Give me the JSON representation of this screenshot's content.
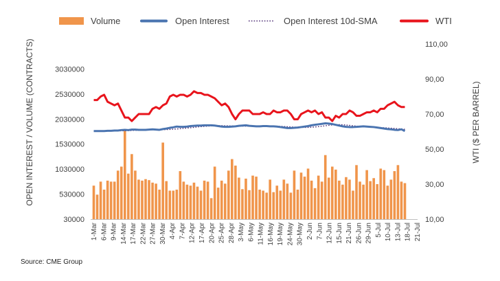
{
  "chart_data": {
    "type": "bar",
    "title": "",
    "source": "Source: CME Group",
    "ylabel_left": "OPEN INTEREST / VOLUME (CONTRACTS)",
    "ylabel_right": "WTI ($ PER BARREL)",
    "ylim_left": [
      30000,
      3530000
    ],
    "ylim_right": [
      10,
      110
    ],
    "left_ticks": [
      "30000",
      "530000",
      "1030000",
      "1530000",
      "2030000",
      "2530000",
      "3030000"
    ],
    "right_ticks": [
      "10,00",
      "30,00",
      "50,00",
      "70,00",
      "90,00",
      "110,00"
    ],
    "x_tick_labels": [
      "1-Mar",
      "6-Mar",
      "9-Mar",
      "14-Mar",
      "17-Mar",
      "22-Mar",
      "27-Mar",
      "30-Mar",
      "4-Apr",
      "7-Apr",
      "12-Apr",
      "17-Apr",
      "20-Apr",
      "25-Apr",
      "28-Apr",
      "3-May",
      "6-May",
      "11-May",
      "16-May",
      "19-May",
      "24-May",
      "30-May",
      "2-Jun",
      "7-Jun",
      "12-Jun",
      "15-Jun",
      "21-Jun",
      "26-Jun",
      "29-Jun",
      "5-Jul",
      "10-Jul",
      "13-Jul",
      "18-Jul",
      "21-Jul"
    ],
    "legend": [
      {
        "name": "Volume",
        "color": "#f0954b",
        "style": "box"
      },
      {
        "name": "Open Interest",
        "color": "#4a74b0",
        "style": "line"
      },
      {
        "name": "Open Interest 10d-SMA",
        "color": "#4b2a73",
        "style": "dotted"
      },
      {
        "name": "WTI",
        "color": "#e8141c",
        "style": "line"
      }
    ],
    "series": [
      {
        "name": "Volume",
        "axis": "left",
        "color": "#f0954b",
        "values": [
          700000,
          520000,
          780000,
          620000,
          800000,
          780000,
          780000,
          1000000,
          1080000,
          1800000,
          940000,
          1330000,
          1000000,
          820000,
          800000,
          830000,
          810000,
          760000,
          740000,
          620000,
          1560000,
          790000,
          600000,
          600000,
          620000,
          990000,
          780000,
          720000,
          700000,
          760000,
          680000,
          600000,
          800000,
          780000,
          450000,
          1080000,
          660000,
          800000,
          740000,
          1000000,
          1230000,
          1100000,
          860000,
          630000,
          840000,
          610000,
          900000,
          880000,
          620000,
          600000,
          560000,
          820000,
          570000,
          700000,
          600000,
          820000,
          740000,
          560000,
          1000000,
          620000,
          960000,
          880000,
          1040000,
          800000,
          650000,
          900000,
          780000,
          1310000,
          860000,
          1080000,
          1020000,
          800000,
          720000,
          870000,
          820000,
          600000,
          1110000,
          780000,
          720000,
          1010000,
          790000,
          850000,
          730000,
          1040000,
          1010000,
          700000,
          820000,
          990000,
          1110000,
          780000,
          750000
        ]
      },
      {
        "name": "Open Interest",
        "axis": "left",
        "color": "#4a74b0",
        "values": [
          1790000,
          1790000,
          1790000,
          1790000,
          1795000,
          1795000,
          1800000,
          1800000,
          1810000,
          1815000,
          1810000,
          1820000,
          1820000,
          1815000,
          1815000,
          1815000,
          1820000,
          1825000,
          1820000,
          1815000,
          1830000,
          1840000,
          1855000,
          1865000,
          1880000,
          1875000,
          1875000,
          1880000,
          1890000,
          1895000,
          1900000,
          1900000,
          1905000,
          1905000,
          1905000,
          1900000,
          1890000,
          1880000,
          1875000,
          1875000,
          1880000,
          1885000,
          1895000,
          1900000,
          1905000,
          1895000,
          1890000,
          1885000,
          1885000,
          1890000,
          1890000,
          1885000,
          1885000,
          1880000,
          1870000,
          1860000,
          1850000,
          1850000,
          1855000,
          1860000,
          1870000,
          1880000,
          1890000,
          1905000,
          1915000,
          1925000,
          1935000,
          1945000,
          1940000,
          1930000,
          1915000,
          1900000,
          1885000,
          1875000,
          1870000,
          1870000,
          1875000,
          1880000,
          1885000,
          1880000,
          1875000,
          1870000,
          1860000,
          1850000,
          1840000,
          1830000,
          1825000,
          1815000,
          1810000,
          1825000,
          1790000
        ]
      },
      {
        "name": "Open Interest 10d-SMA",
        "axis": "left",
        "color": "#4b2a73",
        "values": [
          1790000,
          1790000,
          1790000,
          1790000,
          1791000,
          1792000,
          1793000,
          1794000,
          1795000,
          1797000,
          1799000,
          1802000,
          1805000,
          1807000,
          1809000,
          1811000,
          1813000,
          1815000,
          1816000,
          1816000,
          1818000,
          1820000,
          1823000,
          1827000,
          1832000,
          1838000,
          1844000,
          1850000,
          1857000,
          1864000,
          1872000,
          1878000,
          1884000,
          1888000,
          1892000,
          1895000,
          1897000,
          1897000,
          1896000,
          1894000,
          1892000,
          1891000,
          1890000,
          1889000,
          1888000,
          1888000,
          1888000,
          1889000,
          1889000,
          1890000,
          1890000,
          1889000,
          1888000,
          1886000,
          1884000,
          1881000,
          1877000,
          1873000,
          1869000,
          1866000,
          1864000,
          1863000,
          1864000,
          1867000,
          1872000,
          1879000,
          1887000,
          1896000,
          1905000,
          1912000,
          1917000,
          1918000,
          1916000,
          1911000,
          1904000,
          1896000,
          1889000,
          1883000,
          1878000,
          1874000,
          1870000,
          1867000,
          1864000,
          1861000,
          1857000,
          1852000,
          1847000,
          1842000,
          1837000,
          1832000,
          1826000
        ]
      },
      {
        "name": "WTI",
        "axis": "right",
        "color": "#e8141c",
        "values": [
          78,
          78,
          80,
          81,
          77,
          76,
          75,
          76,
          72,
          68,
          68,
          66,
          68,
          70,
          70,
          70,
          70,
          73,
          74,
          73,
          75,
          76,
          80,
          81,
          80,
          81,
          81,
          80,
          81,
          83,
          82,
          82,
          81,
          81,
          80,
          79,
          77,
          75,
          76,
          74,
          70,
          67,
          70,
          72,
          72,
          72,
          70,
          70,
          70,
          71,
          70,
          70,
          72,
          71,
          71,
          72,
          72,
          70,
          67,
          67,
          70,
          71,
          72,
          71,
          72,
          70,
          71,
          68,
          68,
          66,
          69,
          68,
          70,
          70,
          72,
          71,
          69,
          69,
          70,
          71,
          71,
          72,
          71,
          73,
          73,
          75,
          76,
          77,
          75,
          74,
          74
        ]
      }
    ]
  }
}
